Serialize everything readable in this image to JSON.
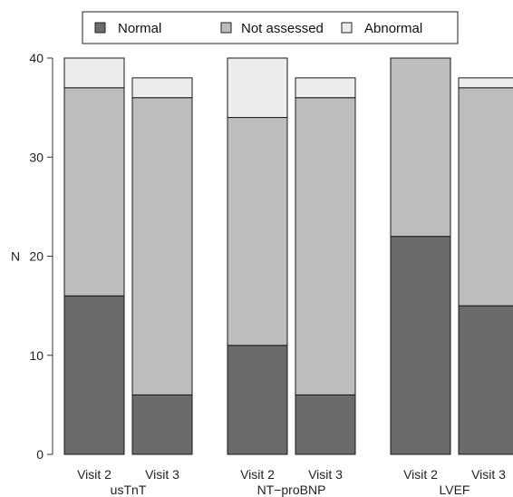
{
  "chart_data": {
    "type": "bar",
    "stacked": true,
    "ylabel": "N",
    "ylim": [
      0,
      40
    ],
    "yticks": [
      0,
      10,
      20,
      30,
      40
    ],
    "legend": {
      "placement": "top",
      "entries": [
        {
          "name": "Normal",
          "color": "#6b6b69"
        },
        {
          "name": "Not assessed",
          "color": "#bdbdbd"
        },
        {
          "name": "Abnormal",
          "color": "#ececec"
        }
      ]
    },
    "groups": [
      {
        "name": "usTnT",
        "bars": [
          {
            "label": "Visit 2",
            "values": {
              "Normal": 16,
              "Not assessed": 21,
              "Abnormal": 3
            }
          },
          {
            "label": "Visit 3",
            "values": {
              "Normal": 6,
              "Not assessed": 30,
              "Abnormal": 2
            }
          }
        ]
      },
      {
        "name": "NT−proBNP",
        "bars": [
          {
            "label": "Visit 2",
            "values": {
              "Normal": 11,
              "Not assessed": 23,
              "Abnormal": 6
            }
          },
          {
            "label": "Visit 3",
            "values": {
              "Normal": 6,
              "Not assessed": 30,
              "Abnormal": 2
            }
          }
        ]
      },
      {
        "name": "LVEF",
        "bars": [
          {
            "label": "Visit 2",
            "values": {
              "Normal": 22,
              "Not assessed": 18,
              "Abnormal": 0
            }
          },
          {
            "label": "Visit 3",
            "values": {
              "Normal": 15,
              "Not assessed": 22,
              "Abnormal": 1
            }
          }
        ]
      }
    ],
    "colors": {
      "stroke": "#1a1a1a",
      "axis": "#333333"
    },
    "grid": false
  }
}
